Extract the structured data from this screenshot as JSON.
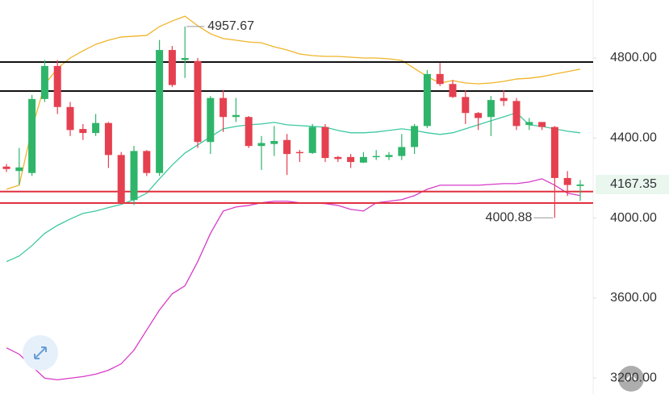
{
  "chart_data": {
    "type": "candlestick",
    "ylim": [
      3120,
      5090
    ],
    "yticks": [
      {
        "value": 3200,
        "label": "3200.00"
      },
      {
        "value": 3600,
        "label": "3600.00"
      },
      {
        "value": 4000,
        "label": "4000.00"
      },
      {
        "value": 4400,
        "label": "4400.00"
      },
      {
        "value": 4800,
        "label": "4800.00"
      }
    ],
    "up_color": "#2fb56a",
    "down_color": "#e5404f",
    "open": [
      4257,
      4235,
      4225,
      4595,
      4760,
      4555,
      4445,
      4425,
      4475,
      4315,
      4090,
      4335,
      4225,
      4840,
      4790,
      4785,
      4380,
      4600,
      4505,
      4505,
      4360,
      4370,
      4390,
      4330,
      4325,
      4455,
      4305,
      4305,
      4277,
      4305,
      4305,
      4310,
      4355,
      4460,
      4720,
      4670,
      4605,
      4525,
      4505,
      4600,
      4585,
      4465,
      4480,
      4455,
      4200,
      4160
    ],
    "high": [
      4270,
      4350,
      4615,
      4790,
      4790,
      4580,
      4470,
      4520,
      4480,
      4330,
      4360,
      4340,
      4890,
      4860,
      4957.67,
      4800,
      4610,
      4640,
      4600,
      4510,
      4410,
      4460,
      4420,
      4340,
      4470,
      4470,
      4310,
      4320,
      4330,
      4340,
      4330,
      4420,
      4470,
      4740,
      4775,
      4690,
      4640,
      4530,
      4610,
      4640,
      4600,
      4500,
      4480,
      4460,
      4235,
      4190
    ],
    "low": [
      4230,
      4165,
      4210,
      4580,
      4520,
      4410,
      4390,
      4410,
      4250,
      4070,
      4065,
      4210,
      4210,
      4655,
      4700,
      4350,
      4320,
      4430,
      4480,
      4350,
      4240,
      4310,
      4215,
      4280,
      4320,
      4280,
      4280,
      4250,
      4275,
      4290,
      4290,
      4290,
      4320,
      4450,
      4660,
      4600,
      4470,
      4440,
      4410,
      4560,
      4440,
      4440,
      4440,
      4000.88,
      4110,
      4085
    ],
    "close": [
      4245,
      4253,
      4595,
      4760,
      4555,
      4440,
      4425,
      4475,
      4315,
      4075,
      4335,
      4225,
      4840,
      4665,
      4800,
      4380,
      4600,
      4505,
      4515,
      4360,
      4375,
      4385,
      4320,
      4325,
      4455,
      4300,
      4295,
      4280,
      4305,
      4310,
      4315,
      4355,
      4460,
      4720,
      4670,
      4605,
      4525,
      4500,
      4590,
      4585,
      4460,
      4480,
      4455,
      4200,
      4165,
      4167.35
    ],
    "series": [
      {
        "color": "#f0b429",
        "values": [
          4144,
          4164,
          4446,
          4667,
          4748,
          4800,
          4836,
          4868,
          4889,
          4905,
          4909,
          4913,
          4957,
          4985,
          5009,
          4961,
          4921,
          4897,
          4889,
          4880,
          4876,
          4856,
          4840,
          4820,
          4812,
          4808,
          4808,
          4804,
          4800,
          4800,
          4796,
          4788,
          4748,
          4707,
          4675,
          4687,
          4675,
          4671,
          4675,
          4683,
          4695,
          4699,
          4707,
          4720,
          4732,
          4744
        ]
      },
      {
        "color": "#3cc9a0",
        "values": [
          3782,
          3810,
          3862,
          3923,
          3963,
          3995,
          4023,
          4035,
          4052,
          4068,
          4092,
          4124,
          4196,
          4265,
          4325,
          4365,
          4406,
          4446,
          4458,
          4466,
          4470,
          4478,
          4466,
          4462,
          4458,
          4454,
          4438,
          4426,
          4426,
          4430,
          4438,
          4446,
          4438,
          4426,
          4418,
          4426,
          4446,
          4466,
          4486,
          4506,
          4526,
          4466,
          4458,
          4446,
          4434,
          4426
        ]
      },
      {
        "color": "#d63bc8",
        "values": [
          3351,
          3319,
          3259,
          3199,
          3191,
          3199,
          3207,
          3219,
          3239,
          3271,
          3339,
          3440,
          3540,
          3621,
          3661,
          3782,
          3923,
          4035,
          4055,
          4063,
          4076,
          4084,
          4084,
          4076,
          4076,
          4072,
          4063,
          4043,
          4035,
          4076,
          4084,
          4092,
          4112,
          4144,
          4164,
          4164,
          4164,
          4164,
          4168,
          4172,
          4172,
          4180,
          4196,
          4164,
          4124,
          4112
        ]
      }
    ],
    "hlines": [
      {
        "value": 4780,
        "color": "#111111"
      },
      {
        "value": 4635,
        "color": "#111111"
      },
      {
        "value": 4132,
        "color": "#e0303f"
      },
      {
        "value": 4075,
        "color": "#e0303f"
      }
    ]
  }
}
